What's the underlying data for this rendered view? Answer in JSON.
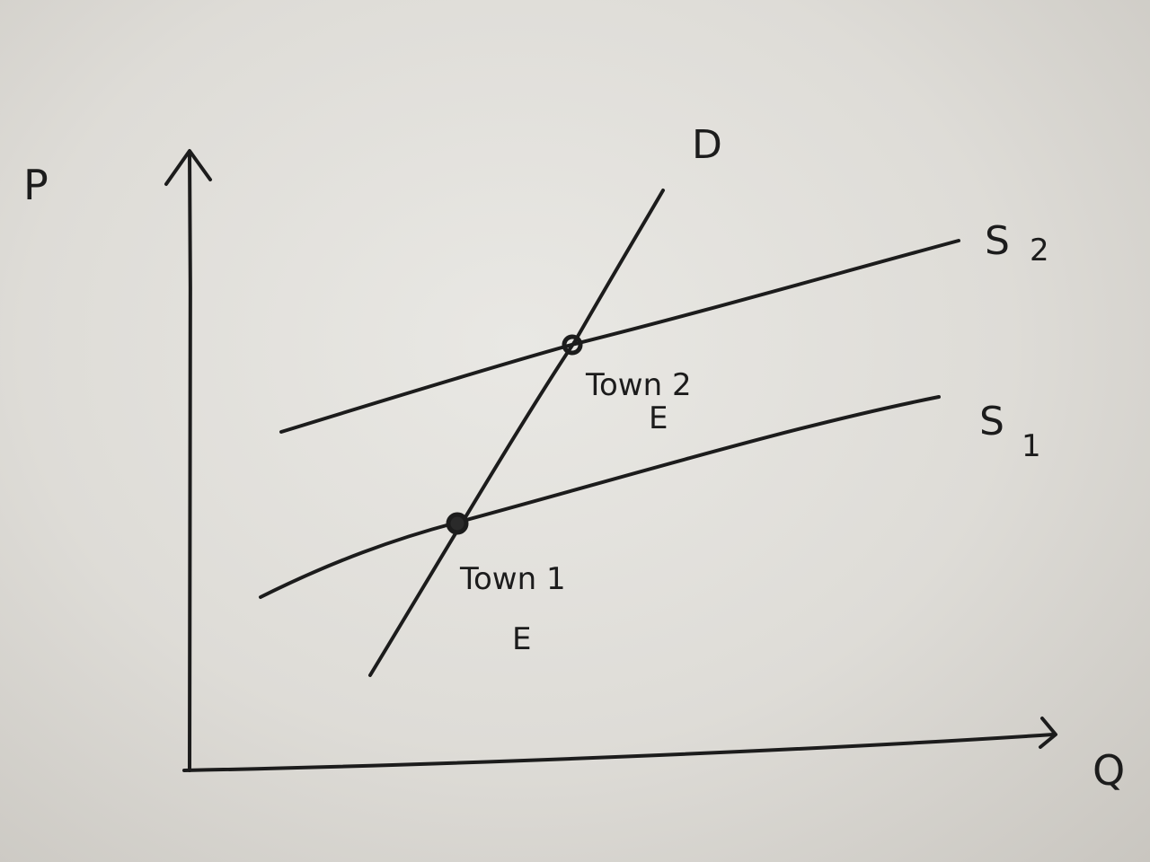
{
  "diagram": {
    "axes": {
      "y_label": "P",
      "x_label": "Q"
    },
    "curves": {
      "demand": {
        "label": "D"
      },
      "supply_2": {
        "label": "S",
        "subscript": "2"
      },
      "supply_1": {
        "label": "S",
        "subscript": "1"
      }
    },
    "equilibria": {
      "town_2": {
        "name": "Town 2",
        "marker": "E"
      },
      "town_1": {
        "name": "Town 1",
        "marker": "E"
      }
    },
    "colors": {
      "ink": "#1c1c1c",
      "paper": "#e3e2de"
    }
  }
}
